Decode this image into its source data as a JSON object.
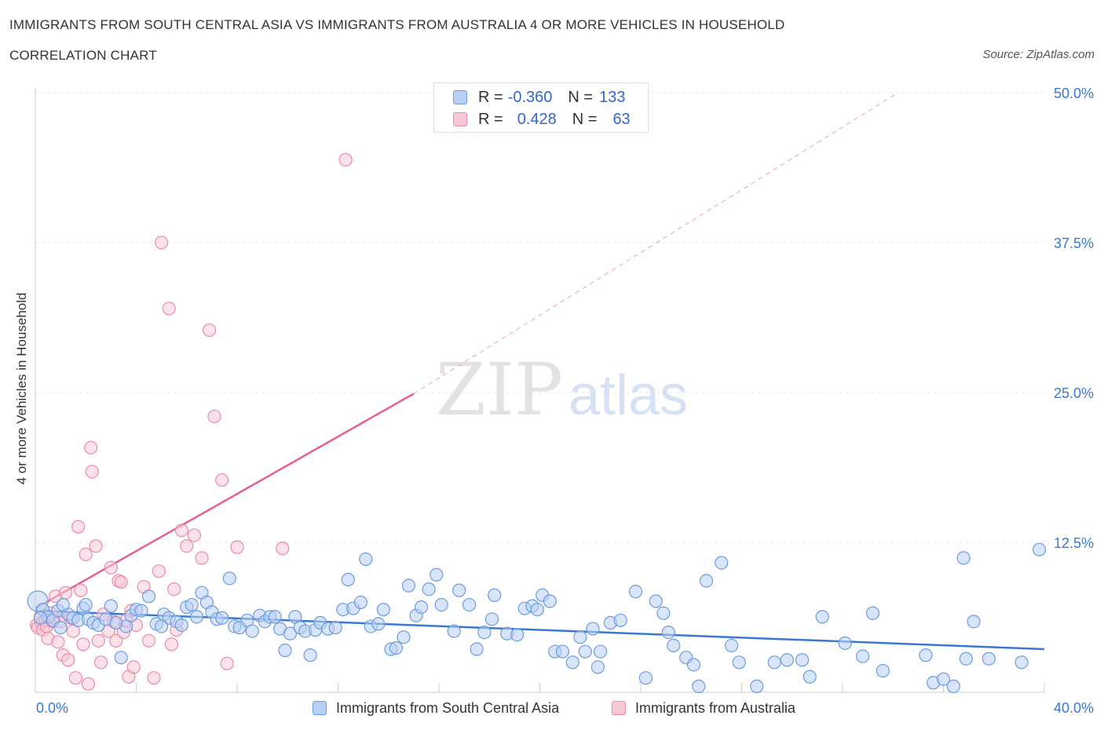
{
  "title": "IMMIGRANTS FROM SOUTH CENTRAL ASIA VS IMMIGRANTS FROM AUSTRALIA 4 OR MORE VEHICLES IN HOUSEHOLD",
  "subtitle": "CORRELATION CHART",
  "source": "Source: ZipAtlas.com",
  "watermark": {
    "zip": "ZIP",
    "atlas": "atlas"
  },
  "legend": {
    "series1": {
      "r_label": "R =",
      "r_value": "-0.360",
      "n_label": "N =",
      "n_value": "133"
    },
    "series2": {
      "r_label": "R =",
      "r_value": "0.428",
      "n_label": "N =",
      "n_value": "63"
    }
  },
  "colors": {
    "blue_fill": "#b8d0f4",
    "blue_stroke": "#6b9be0",
    "blue_line": "#3a78d0",
    "pink_fill": "#f8c8d6",
    "pink_stroke": "#ec8aa8",
    "pink_line": "#e8608a",
    "axis_label": "#3a78d0",
    "grid": "#e4e4e4"
  },
  "chart_data": {
    "type": "scatter",
    "ylabel": "4 or more Vehicles in Household",
    "xlim": [
      0,
      40
    ],
    "ylim": [
      0,
      50
    ],
    "x_tick_labels": [
      "0.0%",
      "40.0%"
    ],
    "y_tick_values": [
      12.5,
      25.0,
      37.5,
      50.0
    ],
    "y_tick_labels": [
      "12.5%",
      "25.0%",
      "37.5%",
      "50.0%"
    ],
    "grid": "horizontal dashed",
    "series": [
      {
        "name": "Immigrants from South Central Asia",
        "color": "blue",
        "trend": {
          "x": [
            0,
            40
          ],
          "y": [
            6.8,
            3.6
          ],
          "extrapolated": false
        },
        "points": [
          [
            0.1,
            7.6
          ],
          [
            0.3,
            6.9
          ],
          [
            0.5,
            6.3
          ],
          [
            0.7,
            6.0
          ],
          [
            0.9,
            6.8
          ],
          [
            1.0,
            5.4
          ],
          [
            1.3,
            6.5
          ],
          [
            1.5,
            6.2
          ],
          [
            1.7,
            6.0
          ],
          [
            1.9,
            7.0
          ],
          [
            2.1,
            6.1
          ],
          [
            2.3,
            5.8
          ],
          [
            2.5,
            5.6
          ],
          [
            2.8,
            6.1
          ],
          [
            3.0,
            7.2
          ],
          [
            3.4,
            2.9
          ],
          [
            3.6,
            5.5
          ],
          [
            3.8,
            6.4
          ],
          [
            4.0,
            6.9
          ],
          [
            4.2,
            6.8
          ],
          [
            4.5,
            8.0
          ],
          [
            4.8,
            5.7
          ],
          [
            5.1,
            6.5
          ],
          [
            5.3,
            6.2
          ],
          [
            5.6,
            5.9
          ],
          [
            5.8,
            5.6
          ],
          [
            6.0,
            7.1
          ],
          [
            6.2,
            7.3
          ],
          [
            6.4,
            6.3
          ],
          [
            6.6,
            8.3
          ],
          [
            6.8,
            7.5
          ],
          [
            7.0,
            6.7
          ],
          [
            7.2,
            6.1
          ],
          [
            7.4,
            6.2
          ],
          [
            7.7,
            9.5
          ],
          [
            7.9,
            5.5
          ],
          [
            8.1,
            5.4
          ],
          [
            8.4,
            6.0
          ],
          [
            8.6,
            5.1
          ],
          [
            8.9,
            6.4
          ],
          [
            9.1,
            5.9
          ],
          [
            9.3,
            6.3
          ],
          [
            9.5,
            6.3
          ],
          [
            9.7,
            5.3
          ],
          [
            9.9,
            3.5
          ],
          [
            10.1,
            4.9
          ],
          [
            10.3,
            6.3
          ],
          [
            10.5,
            5.4
          ],
          [
            10.7,
            5.1
          ],
          [
            10.9,
            3.1
          ],
          [
            11.1,
            5.2
          ],
          [
            11.3,
            5.8
          ],
          [
            11.6,
            5.3
          ],
          [
            11.9,
            5.4
          ],
          [
            12.2,
            6.9
          ],
          [
            12.4,
            9.4
          ],
          [
            12.6,
            7.0
          ],
          [
            12.9,
            7.5
          ],
          [
            13.1,
            11.1
          ],
          [
            13.3,
            5.5
          ],
          [
            13.6,
            5.7
          ],
          [
            13.8,
            6.9
          ],
          [
            14.1,
            3.6
          ],
          [
            14.3,
            3.7
          ],
          [
            14.6,
            4.6
          ],
          [
            14.8,
            8.9
          ],
          [
            15.1,
            6.4
          ],
          [
            15.3,
            7.1
          ],
          [
            15.9,
            9.8
          ],
          [
            15.6,
            8.6
          ],
          [
            16.1,
            7.3
          ],
          [
            16.6,
            5.1
          ],
          [
            16.8,
            8.5
          ],
          [
            17.2,
            7.3
          ],
          [
            17.5,
            3.6
          ],
          [
            17.8,
            5.0
          ],
          [
            18.1,
            6.1
          ],
          [
            18.2,
            8.1
          ],
          [
            18.7,
            4.9
          ],
          [
            19.1,
            4.8
          ],
          [
            19.4,
            7.0
          ],
          [
            19.7,
            7.2
          ],
          [
            19.9,
            6.9
          ],
          [
            20.1,
            8.1
          ],
          [
            20.4,
            7.6
          ],
          [
            20.6,
            3.4
          ],
          [
            20.9,
            3.4
          ],
          [
            21.3,
            2.5
          ],
          [
            21.6,
            4.6
          ],
          [
            21.8,
            3.4
          ],
          [
            22.1,
            5.3
          ],
          [
            22.3,
            2.1
          ],
          [
            22.4,
            3.4
          ],
          [
            22.8,
            5.8
          ],
          [
            23.2,
            6.0
          ],
          [
            23.8,
            8.4
          ],
          [
            24.2,
            1.2
          ],
          [
            24.6,
            7.6
          ],
          [
            24.9,
            6.6
          ],
          [
            25.1,
            5.0
          ],
          [
            25.3,
            3.9
          ],
          [
            25.8,
            2.9
          ],
          [
            26.1,
            2.3
          ],
          [
            26.3,
            0.5
          ],
          [
            26.6,
            9.3
          ],
          [
            27.2,
            10.8
          ],
          [
            27.6,
            3.9
          ],
          [
            27.9,
            2.5
          ],
          [
            28.6,
            0.5
          ],
          [
            29.3,
            2.5
          ],
          [
            29.8,
            2.7
          ],
          [
            30.4,
            2.7
          ],
          [
            30.7,
            1.3
          ],
          [
            31.2,
            6.3
          ],
          [
            32.1,
            4.1
          ],
          [
            32.8,
            3.0
          ],
          [
            33.2,
            6.6
          ],
          [
            33.6,
            1.8
          ],
          [
            35.3,
            3.1
          ],
          [
            35.6,
            0.8
          ],
          [
            36.0,
            1.1
          ],
          [
            36.4,
            0.5
          ],
          [
            36.8,
            11.2
          ],
          [
            36.9,
            2.8
          ],
          [
            37.2,
            5.9
          ],
          [
            37.8,
            2.8
          ],
          [
            39.1,
            2.5
          ],
          [
            39.8,
            11.9
          ],
          [
            0.2,
            6.2
          ],
          [
            1.1,
            7.3
          ],
          [
            2.0,
            7.3
          ],
          [
            3.2,
            5.8
          ],
          [
            5.0,
            5.5
          ]
        ]
      },
      {
        "name": "Immigrants from Australia",
        "color": "pink",
        "trend": {
          "x": [
            0,
            15
          ],
          "y": [
            7.0,
            24.9
          ],
          "extrapolated_to": [
            34.2,
            50.0
          ]
        },
        "points": [
          [
            0.05,
            5.6
          ],
          [
            0.1,
            5.4
          ],
          [
            0.2,
            6.3
          ],
          [
            0.25,
            5.8
          ],
          [
            0.3,
            5.2
          ],
          [
            0.4,
            6.0
          ],
          [
            0.45,
            5.5
          ],
          [
            0.5,
            4.5
          ],
          [
            0.6,
            6.6
          ],
          [
            0.7,
            5.9
          ],
          [
            0.75,
            6.2
          ],
          [
            0.8,
            8.0
          ],
          [
            0.9,
            4.2
          ],
          [
            1.0,
            5.9
          ],
          [
            1.1,
            3.1
          ],
          [
            1.2,
            8.3
          ],
          [
            1.3,
            2.7
          ],
          [
            1.4,
            6.2
          ],
          [
            1.5,
            5.1
          ],
          [
            1.6,
            1.2
          ],
          [
            1.7,
            13.8
          ],
          [
            1.8,
            8.5
          ],
          [
            1.9,
            4.0
          ],
          [
            2.0,
            11.5
          ],
          [
            2.1,
            0.7
          ],
          [
            2.2,
            20.4
          ],
          [
            2.25,
            18.4
          ],
          [
            2.4,
            12.2
          ],
          [
            2.5,
            4.3
          ],
          [
            2.6,
            2.5
          ],
          [
            2.7,
            6.5
          ],
          [
            2.9,
            5.1
          ],
          [
            3.0,
            10.4
          ],
          [
            3.1,
            5.9
          ],
          [
            3.2,
            4.3
          ],
          [
            3.3,
            9.3
          ],
          [
            3.4,
            9.2
          ],
          [
            3.5,
            5.0
          ],
          [
            3.6,
            6.0
          ],
          [
            3.7,
            1.3
          ],
          [
            3.8,
            6.8
          ],
          [
            3.9,
            2.1
          ],
          [
            4.0,
            5.6
          ],
          [
            4.3,
            8.8
          ],
          [
            4.5,
            4.3
          ],
          [
            4.7,
            1.2
          ],
          [
            4.9,
            10.1
          ],
          [
            5.0,
            37.5
          ],
          [
            5.3,
            32.0
          ],
          [
            5.4,
            4.0
          ],
          [
            5.5,
            8.6
          ],
          [
            5.6,
            5.2
          ],
          [
            5.8,
            13.5
          ],
          [
            6.0,
            12.2
          ],
          [
            6.3,
            13.1
          ],
          [
            6.6,
            11.2
          ],
          [
            6.9,
            30.2
          ],
          [
            7.1,
            23.0
          ],
          [
            7.4,
            17.7
          ],
          [
            7.6,
            2.4
          ],
          [
            8.0,
            12.1
          ],
          [
            9.8,
            12.0
          ],
          [
            12.3,
            44.4
          ]
        ]
      }
    ]
  }
}
